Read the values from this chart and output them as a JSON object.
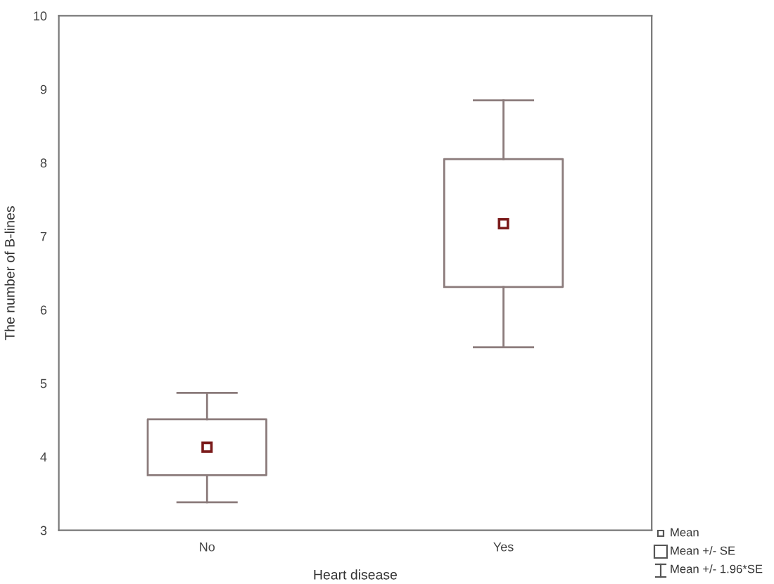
{
  "chart_data": {
    "type": "box",
    "xlabel": "Heart disease",
    "ylabel": "The number of B-lines",
    "categories": [
      "No",
      "Yes"
    ],
    "series": [
      {
        "color": "#8b7b7b",
        "boxes": [
          {
            "low": 3.38,
            "q1": 3.75,
            "q3": 4.51,
            "high": 4.87,
            "mean": 4.13
          },
          {
            "low": 5.49,
            "q1": 6.31,
            "q3": 8.05,
            "high": 8.85,
            "mean": 7.17
          }
        ]
      }
    ],
    "ylim": [
      3,
      10
    ],
    "yticks": [
      3,
      4,
      5,
      6,
      7,
      8,
      9,
      10
    ],
    "grid": false,
    "marker": "square",
    "annotations": [
      "Mean",
      "Mean +/- SE",
      "Mean +/- 1.96*SE"
    ]
  }
}
